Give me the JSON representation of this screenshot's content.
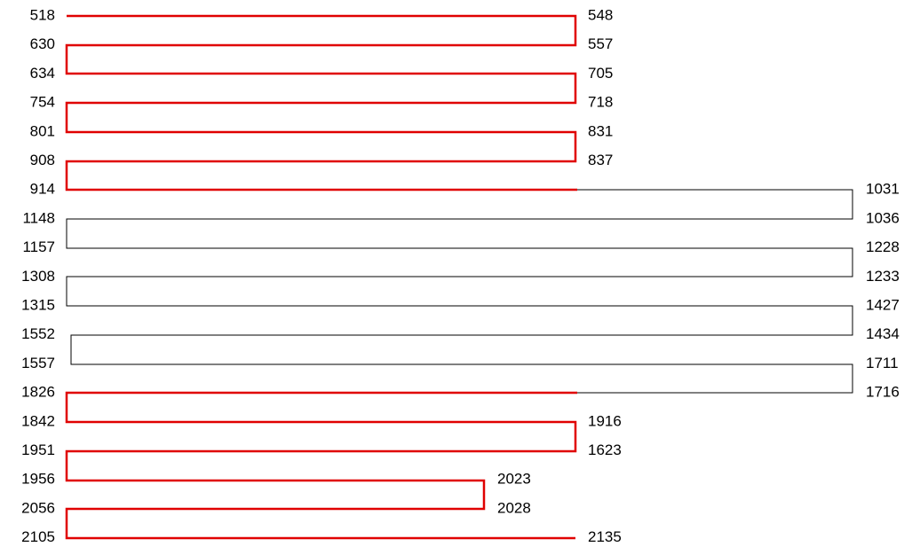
{
  "rows": [
    {
      "left": "518",
      "right": "548"
    },
    {
      "left": "630",
      "right": "557"
    },
    {
      "left": "634",
      "right": "705"
    },
    {
      "left": "754",
      "right": "718"
    },
    {
      "left": "801",
      "right": "831"
    },
    {
      "left": "908",
      "right": "837"
    },
    {
      "left": "914",
      "right": "1031"
    },
    {
      "left": "1148",
      "right": "1036"
    },
    {
      "left": "1157",
      "right": "1228"
    },
    {
      "left": "1308",
      "right": "1233"
    },
    {
      "left": "1315",
      "right": "1427"
    },
    {
      "left": "1552",
      "right": "1434"
    },
    {
      "left": "1557",
      "right": "1711"
    },
    {
      "left": "1826",
      "right": "1716"
    },
    {
      "left": "1842",
      "right": "1916"
    },
    {
      "left": "1951",
      "right": "1623"
    },
    {
      "left": "1956",
      "right": "2023"
    },
    {
      "left": "2056",
      "right": "2028"
    },
    {
      "left": "2105",
      "right": "2135"
    }
  ]
}
